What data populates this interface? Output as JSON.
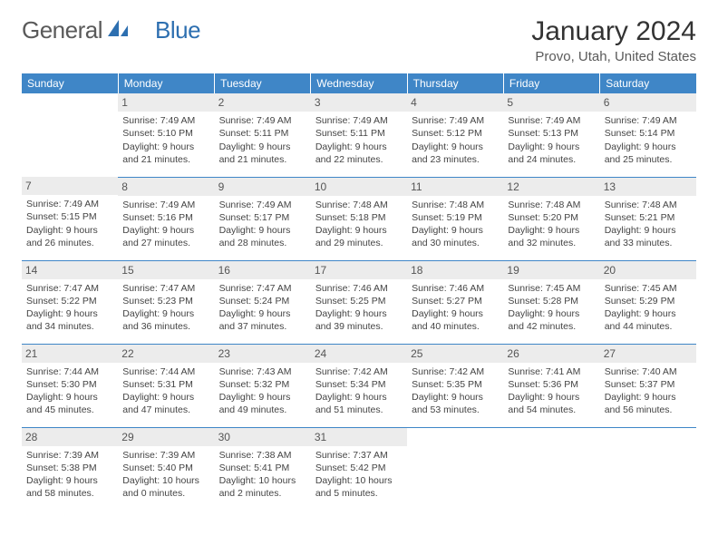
{
  "logo": {
    "text1": "General",
    "text2": "Blue"
  },
  "title": "January 2024",
  "location": "Provo, Utah, United States",
  "colors": {
    "header_bg": "#3f86c7",
    "header_text": "#ffffff",
    "daynum_bg": "#ececec",
    "border": "#3f86c7",
    "logo_accent": "#2d6fb0"
  },
  "weekdays": [
    "Sunday",
    "Monday",
    "Tuesday",
    "Wednesday",
    "Thursday",
    "Friday",
    "Saturday"
  ],
  "weeks": [
    [
      null,
      {
        "n": "1",
        "sr": "7:49 AM",
        "ss": "5:10 PM",
        "dl": "9 hours and 21 minutes."
      },
      {
        "n": "2",
        "sr": "7:49 AM",
        "ss": "5:11 PM",
        "dl": "9 hours and 21 minutes."
      },
      {
        "n": "3",
        "sr": "7:49 AM",
        "ss": "5:11 PM",
        "dl": "9 hours and 22 minutes."
      },
      {
        "n": "4",
        "sr": "7:49 AM",
        "ss": "5:12 PM",
        "dl": "9 hours and 23 minutes."
      },
      {
        "n": "5",
        "sr": "7:49 AM",
        "ss": "5:13 PM",
        "dl": "9 hours and 24 minutes."
      },
      {
        "n": "6",
        "sr": "7:49 AM",
        "ss": "5:14 PM",
        "dl": "9 hours and 25 minutes."
      }
    ],
    [
      {
        "n": "7",
        "sr": "7:49 AM",
        "ss": "5:15 PM",
        "dl": "9 hours and 26 minutes."
      },
      {
        "n": "8",
        "sr": "7:49 AM",
        "ss": "5:16 PM",
        "dl": "9 hours and 27 minutes."
      },
      {
        "n": "9",
        "sr": "7:49 AM",
        "ss": "5:17 PM",
        "dl": "9 hours and 28 minutes."
      },
      {
        "n": "10",
        "sr": "7:48 AM",
        "ss": "5:18 PM",
        "dl": "9 hours and 29 minutes."
      },
      {
        "n": "11",
        "sr": "7:48 AM",
        "ss": "5:19 PM",
        "dl": "9 hours and 30 minutes."
      },
      {
        "n": "12",
        "sr": "7:48 AM",
        "ss": "5:20 PM",
        "dl": "9 hours and 32 minutes."
      },
      {
        "n": "13",
        "sr": "7:48 AM",
        "ss": "5:21 PM",
        "dl": "9 hours and 33 minutes."
      }
    ],
    [
      {
        "n": "14",
        "sr": "7:47 AM",
        "ss": "5:22 PM",
        "dl": "9 hours and 34 minutes."
      },
      {
        "n": "15",
        "sr": "7:47 AM",
        "ss": "5:23 PM",
        "dl": "9 hours and 36 minutes."
      },
      {
        "n": "16",
        "sr": "7:47 AM",
        "ss": "5:24 PM",
        "dl": "9 hours and 37 minutes."
      },
      {
        "n": "17",
        "sr": "7:46 AM",
        "ss": "5:25 PM",
        "dl": "9 hours and 39 minutes."
      },
      {
        "n": "18",
        "sr": "7:46 AM",
        "ss": "5:27 PM",
        "dl": "9 hours and 40 minutes."
      },
      {
        "n": "19",
        "sr": "7:45 AM",
        "ss": "5:28 PM",
        "dl": "9 hours and 42 minutes."
      },
      {
        "n": "20",
        "sr": "7:45 AM",
        "ss": "5:29 PM",
        "dl": "9 hours and 44 minutes."
      }
    ],
    [
      {
        "n": "21",
        "sr": "7:44 AM",
        "ss": "5:30 PM",
        "dl": "9 hours and 45 minutes."
      },
      {
        "n": "22",
        "sr": "7:44 AM",
        "ss": "5:31 PM",
        "dl": "9 hours and 47 minutes."
      },
      {
        "n": "23",
        "sr": "7:43 AM",
        "ss": "5:32 PM",
        "dl": "9 hours and 49 minutes."
      },
      {
        "n": "24",
        "sr": "7:42 AM",
        "ss": "5:34 PM",
        "dl": "9 hours and 51 minutes."
      },
      {
        "n": "25",
        "sr": "7:42 AM",
        "ss": "5:35 PM",
        "dl": "9 hours and 53 minutes."
      },
      {
        "n": "26",
        "sr": "7:41 AM",
        "ss": "5:36 PM",
        "dl": "9 hours and 54 minutes."
      },
      {
        "n": "27",
        "sr": "7:40 AM",
        "ss": "5:37 PM",
        "dl": "9 hours and 56 minutes."
      }
    ],
    [
      {
        "n": "28",
        "sr": "7:39 AM",
        "ss": "5:38 PM",
        "dl": "9 hours and 58 minutes."
      },
      {
        "n": "29",
        "sr": "7:39 AM",
        "ss": "5:40 PM",
        "dl": "10 hours and 0 minutes."
      },
      {
        "n": "30",
        "sr": "7:38 AM",
        "ss": "5:41 PM",
        "dl": "10 hours and 2 minutes."
      },
      {
        "n": "31",
        "sr": "7:37 AM",
        "ss": "5:42 PM",
        "dl": "10 hours and 5 minutes."
      },
      null,
      null,
      null
    ]
  ],
  "labels": {
    "sunrise": "Sunrise: ",
    "sunset": "Sunset: ",
    "daylight": "Daylight: "
  }
}
